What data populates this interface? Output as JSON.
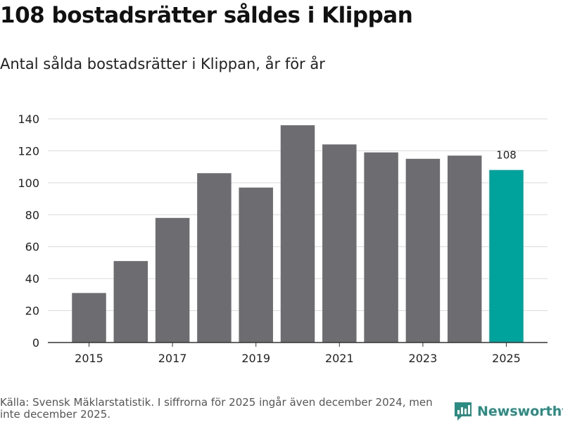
{
  "header": {
    "title": "108 bostadsrätter såldes i Klippan",
    "subtitle": "Antal sålda bostadsrätter i Klippan, år för år"
  },
  "footer": {
    "source": "Källa: Svensk Mäklarstatistik. I siffrorna för 2025 ingår även december 2024, men inte december 2025.",
    "brand": "Newsworthy"
  },
  "colors": {
    "bar": "#6d6c71",
    "highlight": "#00a39b",
    "grid": "#d9d9d9",
    "axis": "#333333",
    "brand": "#2b8c84"
  },
  "chart_data": {
    "type": "bar",
    "title": "Antal sålda bostadsrätter i Klippan, år för år",
    "categories": [
      "2015",
      "2016",
      "2017",
      "2018",
      "2019",
      "2020",
      "2021",
      "2022",
      "2023",
      "2024",
      "2025"
    ],
    "values": [
      31,
      51,
      78,
      106,
      97,
      136,
      124,
      119,
      115,
      117,
      108
    ],
    "highlight": [
      "2025"
    ],
    "x_tick_labels": [
      "2015",
      "2017",
      "2019",
      "2021",
      "2023",
      "2025"
    ],
    "y_ticks": [
      0,
      20,
      40,
      60,
      80,
      100,
      120,
      140
    ],
    "ylim": [
      0,
      140
    ],
    "data_labels": [
      {
        "category": "2025",
        "text": "108"
      }
    ],
    "xlabel": "",
    "ylabel": "",
    "grid": true
  }
}
